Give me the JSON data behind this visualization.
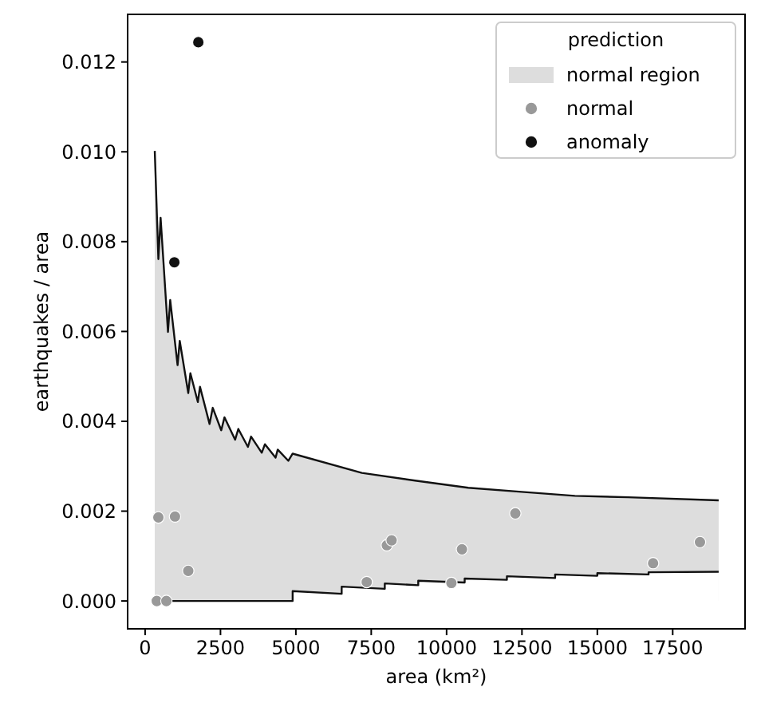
{
  "chart_data": {
    "type": "scatter",
    "xlabel": "area (km²)",
    "ylabel": "earthquakes / area",
    "legend_title": "prediction",
    "legend": "top right",
    "marker": "circle",
    "grid": false,
    "xlim": [
      -580,
      19900
    ],
    "ylim": [
      -0.00062,
      0.01306
    ],
    "xticks": [
      0,
      2500,
      5000,
      7500,
      10000,
      12500,
      15000,
      17500
    ],
    "yticks": [
      {
        "value": 0,
        "label": "0.000"
      },
      {
        "value": 0.002,
        "label": "0.002"
      },
      {
        "value": 0.004,
        "label": "0.004"
      },
      {
        "value": 0.006,
        "label": "0.006"
      },
      {
        "value": 0.008,
        "label": "0.008"
      },
      {
        "value": 0.01,
        "label": "0.010"
      },
      {
        "value": 0.012,
        "label": "0.012"
      }
    ],
    "series": [
      {
        "type": "area",
        "name": "normal region",
        "color": "#dddddd",
        "marker": "none",
        "x": [
          320,
          440,
          514,
          758,
          832,
          1077,
          1149,
          1431,
          1502,
          1749,
          1820,
          2138,
          2244,
          2525,
          2633,
          2985,
          3091,
          3409,
          3515,
          3869,
          3975,
          4328,
          4399,
          4752,
          4894,
          7190,
          8956,
          10720,
          12490,
          14255,
          16020,
          19025
        ],
        "values": [
          0.01002,
          0.00761,
          0.00853,
          0.00599,
          0.0067,
          0.00525,
          0.00579,
          0.00463,
          0.00507,
          0.00443,
          0.00477,
          0.00394,
          0.0043,
          0.0038,
          0.00409,
          0.00359,
          0.00383,
          0.00343,
          0.00366,
          0.0033,
          0.00349,
          0.00319,
          0.00337,
          0.00312,
          0.00328,
          0.00285,
          0.00268,
          0.00252,
          0.00243,
          0.00234,
          0.00231,
          0.00224
        ]
      },
      {
        "type": "area",
        "color": "#ffffff",
        "marker": "none",
        "x": [
          320,
          4894,
          4894,
          6520,
          6520,
          7950,
          7950,
          9060,
          9060,
          10600,
          10600,
          12000,
          12000,
          13600,
          13600,
          15000,
          15000,
          16700,
          16700,
          19025
        ],
        "values": [
          0,
          0,
          0.00022,
          0.00016,
          0.00032,
          0.00027,
          0.00039,
          0.00035,
          0.00045,
          0.00041,
          0.0005,
          0.00047,
          0.00055,
          0.00051,
          0.00059,
          0.00056,
          0.00062,
          0.00059,
          0.00064,
          0.00065
        ]
      },
      {
        "name": "normal",
        "color": "#999999",
        "x": [
          387,
          705,
          440,
          991,
          1431,
          7350,
          8018,
          8177,
          10160,
          10510,
          12280,
          16850,
          18405
        ],
        "values": [
          0,
          0,
          0.00186,
          0.00188,
          0.00067,
          0.00042,
          0.00124,
          0.00135,
          0.0004,
          0.00115,
          0.00195,
          0.00084,
          0.00131
        ]
      },
      {
        "name": "anomaly",
        "color": "#111111",
        "x": [
          1765,
          970
        ],
        "values": [
          0.01244,
          0.00754
        ]
      }
    ]
  }
}
